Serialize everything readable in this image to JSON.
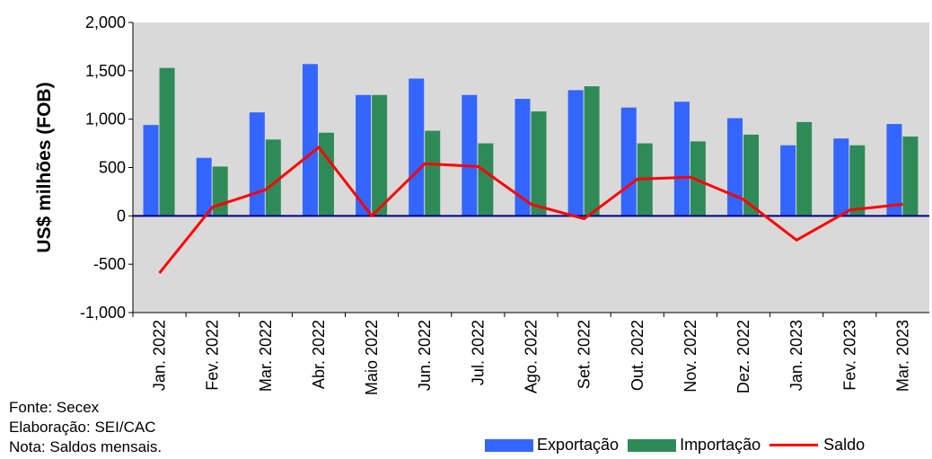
{
  "chart_data": {
    "type": "bar",
    "ylabel": "US$ milhões (FOB)",
    "ylim": [
      -1000,
      2000
    ],
    "yticks": [
      "2,000",
      "1,500",
      "1,000",
      "500",
      "0",
      "-500",
      "-1,000"
    ],
    "ytick_values": [
      2000,
      1500,
      1000,
      500,
      0,
      -500,
      -1000
    ],
    "categories": [
      "Jan. 2022",
      "Fev. 2022",
      "Mar. 2022",
      "Abr. 2022",
      "Maio 2022",
      "Jun. 2022",
      "Jul. 2022",
      "Ago. 2022",
      "Set. 2022",
      "Out. 2022",
      "Nov. 2022",
      "Dez. 2022",
      "Jan. 2023",
      "Fev. 2023",
      "Mar. 2023"
    ],
    "series": [
      {
        "name": "Exportação",
        "type": "bar",
        "color": "#3366ff",
        "values": [
          940,
          600,
          1070,
          1570,
          1250,
          1420,
          1250,
          1210,
          1300,
          1120,
          1180,
          1010,
          730,
          800,
          950
        ]
      },
      {
        "name": "Importação",
        "type": "bar",
        "color": "#2e8b57",
        "values": [
          1530,
          510,
          790,
          860,
          1250,
          880,
          750,
          1080,
          1340,
          750,
          770,
          840,
          970,
          730,
          820
        ]
      },
      {
        "name": "Saldo",
        "type": "line",
        "color": "#ff0000",
        "values": [
          -590,
          90,
          270,
          710,
          0,
          540,
          510,
          120,
          -30,
          380,
          400,
          170,
          -250,
          60,
          120
        ]
      }
    ],
    "grid": false,
    "plot_background": "#d9d9d9",
    "zero_line_color": "#000080",
    "legend_position": "bottom-right"
  },
  "notes": {
    "source": "Fonte: Secex",
    "prepared_by": "Elaboração: SEI/CAC",
    "note": "Nota: Saldos mensais."
  }
}
